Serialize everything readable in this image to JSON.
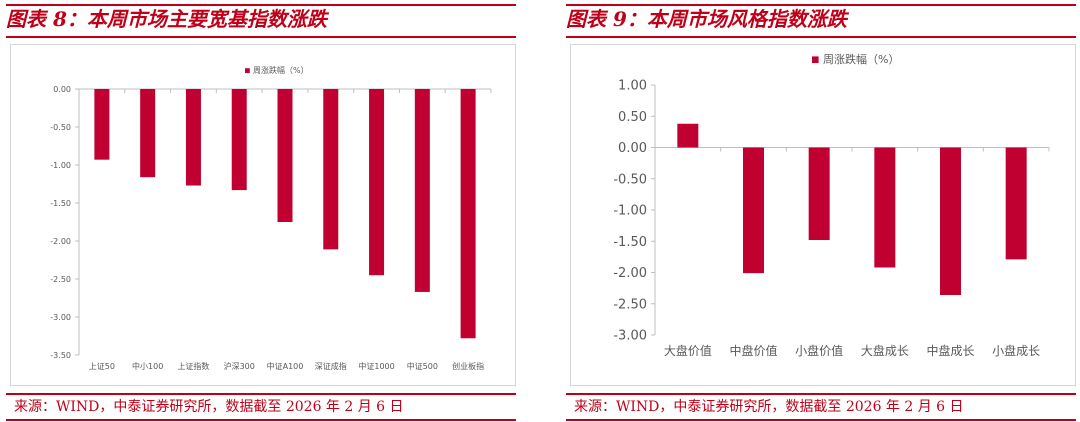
{
  "colors": {
    "accent": "#c00018",
    "bar": "#c00030",
    "axis": "#bfbfbf",
    "text": "#595959"
  },
  "left": {
    "title": "图表 8：本周市场主要宽基指数涨跌",
    "source": "来源：WIND，中泰证券研究所，数据截至 2026 年 2 月 6 日"
  },
  "right": {
    "title": "图表 9：本周市场风格指数涨跌",
    "source": "来源：WIND，中泰证券研究所，数据截至 2026 年 2 月 6 日"
  },
  "chart_data": [
    {
      "type": "bar",
      "legend": "周涨跌幅（%）",
      "legend_position": "top-center",
      "categories": [
        "上证50",
        "中小100",
        "上证指数",
        "沪深300",
        "中证A100",
        "深证成指",
        "中证1000",
        "中证500",
        "创业板指"
      ],
      "series": [
        {
          "name": "周涨跌幅（%）",
          "values": [
            -0.93,
            -1.16,
            -1.27,
            -1.33,
            -1.75,
            -2.11,
            -2.45,
            -2.67,
            -3.28
          ]
        }
      ],
      "yticks": [
        "0.00",
        "-0.50",
        "-1.00",
        "-1.50",
        "-2.00",
        "-2.50",
        "-3.00",
        "-3.50"
      ],
      "ylim": [
        -3.5,
        0
      ],
      "grid": false
    },
    {
      "type": "bar",
      "legend": "周涨跌幅（%）",
      "legend_position": "top-center",
      "categories": [
        "大盘价值",
        "中盘价值",
        "小盘价值",
        "大盘成长",
        "中盘成长",
        "小盘成长"
      ],
      "series": [
        {
          "name": "周涨跌幅（%）",
          "values": [
            0.38,
            -2.01,
            -1.48,
            -1.92,
            -2.36,
            -1.79
          ]
        }
      ],
      "yticks": [
        "1.00",
        "0.50",
        "0.00",
        "-0.50",
        "-1.00",
        "-1.50",
        "-2.00",
        "-2.50",
        "-3.00"
      ],
      "ylim": [
        -3,
        1
      ],
      "grid": false
    }
  ]
}
